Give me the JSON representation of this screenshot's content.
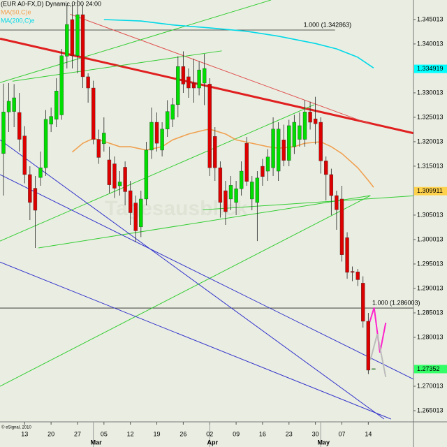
{
  "chart_data": {
    "type": "candlestick",
    "title": "(EUR A0-FX,D) Dynamic,0:00 24:00",
    "watermark": "Tagesausblick",
    "copyright": "© eSignal, 2010",
    "categories": [
      null,
      null,
      null,
      null,
      "13",
      null,
      null,
      null,
      null,
      "20",
      null,
      null,
      null,
      null,
      "27",
      null,
      null,
      null,
      null,
      "05",
      null,
      null,
      null,
      null,
      "12",
      null,
      null,
      null,
      null,
      "19",
      null,
      null,
      null,
      null,
      "26",
      null,
      null,
      null,
      null,
      "02",
      null,
      null,
      null,
      null,
      "09",
      null,
      null,
      null,
      null,
      "16",
      null,
      null,
      null,
      null,
      "23",
      null,
      null,
      null,
      null,
      "30",
      null,
      null,
      null,
      null,
      "07",
      null,
      null,
      null,
      null,
      "14",
      null
    ],
    "months": [
      {
        "label": "Mar",
        "index": 17
      },
      {
        "label": "Apr",
        "index": 39
      },
      {
        "label": "May",
        "index": 60
      }
    ],
    "open": [
      1.3176,
      1.3261,
      1.3262,
      1.326,
      1.3212,
      1.3133,
      1.3105,
      1.3127,
      1.3147,
      1.3236,
      1.3246,
      1.3255,
      1.3375,
      1.345,
      1.3376,
      1.346,
      1.3333,
      1.331,
      1.3205,
      1.3196,
      1.3163,
      1.3155,
      1.311,
      1.3148,
      1.31,
      1.3075,
      1.3026,
      1.3083,
      1.3183,
      1.324,
      1.3183,
      1.3226,
      1.3246,
      1.3276,
      1.3354,
      1.3333,
      1.332,
      1.331,
      1.332,
      1.3318,
      1.3211,
      1.3147,
      1.31,
      1.3083,
      1.3076,
      1.3104,
      1.3197,
      1.3083,
      1.3076,
      1.315,
      1.314,
      1.3147,
      1.314,
      1.3204,
      1.3162,
      1.319,
      1.3205,
      1.3205,
      1.3261,
      1.3247,
      1.324,
      1.3161,
      1.3133,
      1.309,
      1.3083,
      1.3004,
      1.2935,
      1.2934,
      1.2911,
      1.2833,
      1.2736
    ],
    "high": [
      1.3319,
      1.332,
      1.3318,
      1.33,
      1.3232,
      1.315,
      1.313,
      1.318,
      1.3265,
      1.327,
      1.333,
      1.339,
      1.348,
      1.348,
      1.349,
      1.348,
      1.334,
      1.3325,
      1.3225,
      1.325,
      1.319,
      1.317,
      1.314,
      1.316,
      1.312,
      1.309,
      1.31,
      1.32,
      1.327,
      1.326,
      1.324,
      1.3285,
      1.329,
      1.3375,
      1.3385,
      1.335,
      1.337,
      1.3365,
      1.338,
      1.333,
      1.323,
      1.316,
      1.312,
      1.313,
      1.312,
      1.316,
      1.321,
      1.313,
      1.314,
      1.3165,
      1.3185,
      1.325,
      1.324,
      1.3235,
      1.3245,
      1.3255,
      1.326,
      1.3285,
      1.3282,
      1.3292,
      1.325,
      1.317,
      1.3145,
      1.31,
      1.311,
      1.3015,
      1.2945,
      1.294,
      1.2925,
      1.285,
      1.2736
    ],
    "low": [
      1.309,
      1.322,
      1.323,
      1.318,
      1.3115,
      1.304,
      1.2983,
      1.311,
      1.313,
      1.322,
      1.323,
      1.3245,
      1.335,
      1.335,
      1.334,
      1.331,
      1.328,
      1.3195,
      1.3155,
      1.318,
      1.3095,
      1.3085,
      1.309,
      1.307,
      1.303,
      1.2995,
      1.3005,
      1.307,
      1.3165,
      1.318,
      1.317,
      1.321,
      1.323,
      1.325,
      1.33,
      1.329,
      1.328,
      1.3295,
      1.3275,
      1.313,
      1.312,
      1.3045,
      1.303,
      1.306,
      1.305,
      1.309,
      1.311,
      1.306,
      1.2997,
      1.311,
      1.312,
      1.313,
      1.312,
      1.315,
      1.315,
      1.3175,
      1.319,
      1.319,
      1.3225,
      1.3195,
      1.3135,
      1.308,
      1.305,
      1.302,
      1.2955,
      1.292,
      1.2915,
      1.2905,
      1.282,
      1.2725,
      1.2736
    ],
    "close": [
      1.3261,
      1.3283,
      1.329,
      1.3205,
      1.3133,
      1.3076,
      1.306,
      1.3147,
      1.3246,
      1.3252,
      1.3304,
      1.3376,
      1.344,
      1.3376,
      1.346,
      1.3333,
      1.331,
      1.3205,
      1.3168,
      1.3218,
      1.3112,
      1.3105,
      1.3118,
      1.3098,
      1.3055,
      1.3018,
      1.3083,
      1.3183,
      1.324,
      1.3197,
      1.3226,
      1.3262,
      1.3276,
      1.3354,
      1.3318,
      1.331,
      1.331,
      1.3347,
      1.335,
      1.3147,
      1.3147,
      1.3076,
      1.3057,
      1.3111,
      1.3104,
      1.314,
      1.3119,
      1.3118,
      1.3126,
      1.3129,
      1.3169,
      1.3226,
      1.3226,
      1.3162,
      1.3233,
      1.324,
      1.3233,
      1.3261,
      1.324,
      1.3237,
      1.3161,
      1.3133,
      1.309,
      1.3061,
      1.2969,
      1.2933,
      1.2933,
      1.2918,
      1.2833,
      1.2733,
      1.2736
    ],
    "up_color": "#00dd00",
    "down_color": "#dd0000",
    "series": [
      {
        "name": "MA(50,C)e",
        "color": "#f0a050",
        "x": [
          13,
          15,
          17,
          19,
          22,
          24,
          27,
          30,
          32,
          35,
          38,
          39,
          42,
          44,
          47,
          50,
          52,
          55,
          57,
          60,
          62,
          64,
          67,
          69,
          70
        ],
        "values": [
          1.3179,
          1.3197,
          1.3207,
          1.3201,
          1.319,
          1.319,
          1.3183,
          1.319,
          1.3204,
          1.3216,
          1.3224,
          1.3226,
          1.3216,
          1.3204,
          1.3197,
          1.319,
          1.3187,
          1.319,
          1.3197,
          1.32,
          1.319,
          1.3176,
          1.3147,
          1.3121,
          1.3107
        ]
      },
      {
        "name": "MA(200,C)e",
        "color": "#00d8e8",
        "x": [
          19,
          26,
          32,
          39,
          46,
          52,
          59,
          63,
          67,
          70
        ],
        "values": [
          1.345,
          1.3447,
          1.3439,
          1.3433,
          1.3426,
          1.3416,
          1.3401,
          1.339,
          1.3373,
          1.3351
        ]
      }
    ],
    "trendlines": [
      {
        "color": "#e02020",
        "width": 3,
        "x": [
          -0.66,
          78.2
        ],
        "values": [
          1.3411,
          1.3216
        ]
      },
      {
        "color": "#e05050",
        "width": 1,
        "x": [
          12.6,
          69.4
        ],
        "values": [
          1.3461,
          1.3236
        ]
      },
      {
        "color": "#33cc33",
        "width": 1,
        "x": [
          -0.66,
          50.6
        ],
        "values": [
          1.3321,
          1.349
        ]
      },
      {
        "color": "#33cc33",
        "width": 1,
        "x": [
          1.7,
          41.3
        ],
        "values": [
          1.3324,
          1.3386
        ]
      },
      {
        "color": "#33cc33",
        "width": 1,
        "x": [
          -0.66,
          58.8
        ],
        "values": [
          1.2997,
          1.3276
        ]
      },
      {
        "color": "#33cc33",
        "width": 1,
        "x": [
          6.6,
          69.4
        ],
        "values": [
          1.2983,
          1.309
        ]
      },
      {
        "color": "#33cc33",
        "width": 1,
        "x": [
          -0.66,
          69.4
        ],
        "values": [
          1.27,
          1.309
        ]
      },
      {
        "color": "#33cc33",
        "width": 1,
        "x": [
          37.7,
          78.2
        ],
        "values": [
          1.3061,
          1.309
        ]
      },
      {
        "color": "#3333cc",
        "width": 1,
        "x": [
          -0.66,
          78.2
        ],
        "values": [
          1.3133,
          1.2711
        ]
      },
      {
        "color": "#3333cc",
        "width": 1,
        "x": [
          -0.66,
          73.3
        ],
        "values": [
          1.2954,
          1.2633
        ]
      },
      {
        "color": "#3333cc",
        "width": 1,
        "x": [
          -0.66,
          72
        ],
        "values": [
          1.3204,
          1.2633
        ]
      }
    ],
    "projections": [
      {
        "color": "#ff22cc",
        "x": [
          69.1,
          70.1,
          71.2,
          72.3
        ],
        "values": [
          1.2826,
          1.2861,
          1.2769,
          1.283
        ]
      },
      {
        "color": "#bbbbbb",
        "x": [
          69.4,
          70.7,
          72.3
        ],
        "values": [
          1.2754,
          1.2807,
          1.2719
        ]
      }
    ],
    "levels": [
      {
        "value": 1.342863,
        "label": "1.000 (1.342863)",
        "x": [
          -0.66,
          62.7
        ]
      },
      {
        "value": 1.286003,
        "label": "1.000 (1.286003)",
        "x": [
          -0.66,
          78.2
        ]
      }
    ],
    "axis_markers": [
      {
        "value": 1.334919,
        "color": "#00ffff"
      },
      {
        "value": 1.309911,
        "color": "#ffd24d"
      },
      {
        "value": 1.27352,
        "color": "#33ff66"
      }
    ],
    "ylim": [
      1.2633,
      1.349
    ],
    "yticks": [
      1.345013,
      1.340013,
      1.330013,
      1.325013,
      1.320013,
      1.315013,
      1.305013,
      1.300013,
      1.295013,
      1.290013,
      1.285013,
      1.280013,
      1.270013,
      1.265013
    ]
  }
}
